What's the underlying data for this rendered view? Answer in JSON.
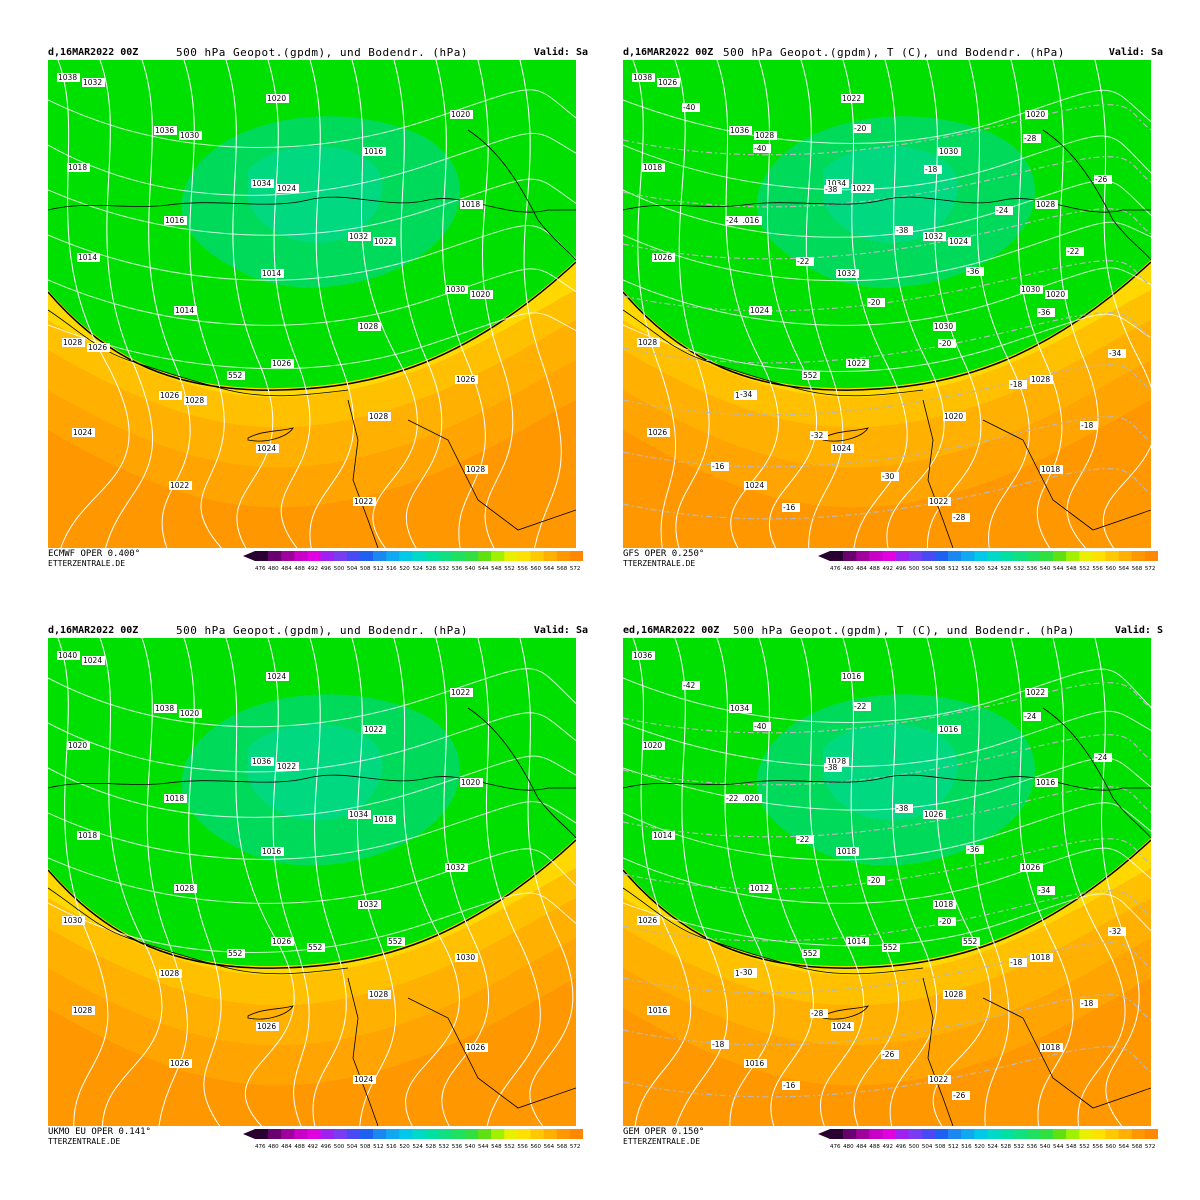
{
  "panels": [
    {
      "id": "ecmwf",
      "date": "d,16MAR2022 00Z",
      "title": "500 hPa Geopot.(gpdm), und Bodendr. (hPa)",
      "valid": "Valid: Sa",
      "model": "ECMWF OPER 0.400°",
      "site": "ETTERZENTRALE.DE",
      "pressure_labels": [
        "1038",
        "1036",
        "1034",
        "1032",
        "1030",
        "1028",
        "1026",
        "1024",
        "1022",
        "1020",
        "1018",
        "1016",
        "1014",
        "1028",
        "1026",
        "1024",
        "1022",
        "1020",
        "1016",
        "1018",
        "1014",
        "1014",
        "1026",
        "1028",
        "1028",
        "1032",
        "1030",
        "1024",
        "1022",
        "1020",
        "1026",
        "1028"
      ],
      "height_labels": [
        "552"
      ],
      "temp_labels": []
    },
    {
      "id": "gfs",
      "date": "d,16MAR2022 00Z",
      "title": "500 hPa Geopot.(gpdm), T (C), und Bodendr. (hPa)",
      "valid": "Valid: Sa",
      "model": "GFS OPER 0.250°",
      "site": "TTERZENTRALE.DE",
      "pressure_labels": [
        "1038",
        "1036",
        "1034",
        "1032",
        "1030",
        "1028",
        "1026",
        "1024",
        "1022",
        "1020",
        "1018",
        "1016",
        "1032",
        "1030",
        "1028",
        "1026",
        "1024",
        "1022",
        "1030",
        "1028",
        "1026",
        "1024",
        "1022",
        "1020",
        "1018",
        "1026",
        "1028",
        "1022",
        "1024",
        "1020"
      ],
      "height_labels": [
        "552"
      ],
      "temp_labels": [
        "-40",
        "-40",
        "-38",
        "-38",
        "-36",
        "-36",
        "-34",
        "-34",
        "-32",
        "-30",
        "-28",
        "-28",
        "-26",
        "-24",
        "-22",
        "-20",
        "-20",
        "-18",
        "-18",
        "-16",
        "-16",
        "-20",
        "-18",
        "-24",
        "-22"
      ]
    },
    {
      "id": "ukmo",
      "date": "d,16MAR2022 00Z",
      "title": "500 hPa Geopot.(gpdm), und Bodendr. (hPa)",
      "valid": "Valid: Sa",
      "model": "UKMO EU OPER 0.141°",
      "site": "TTERZENTRALE.DE",
      "pressure_labels": [
        "1040",
        "1038",
        "1036",
        "1034",
        "1032",
        "1030",
        "1028",
        "1026",
        "1024",
        "1022",
        "1020",
        "1018",
        "1016",
        "1032",
        "1030",
        "1028",
        "1026",
        "1024",
        "1022",
        "1020",
        "1018",
        "1028",
        "1026",
        "1028",
        "1026",
        "1024",
        "1020",
        "1022",
        "1018"
      ],
      "height_labels": [
        "552",
        "552",
        "552"
      ],
      "temp_labels": []
    },
    {
      "id": "gem",
      "date": "ed,16MAR2022 00Z",
      "title": "500 hPa Geopot.(gpdm), T (C), und Bodendr. (hPa)",
      "valid": "Valid: S",
      "model": "GEM OPER 0.150°",
      "site": "ETTERZENTRALE.DE",
      "pressure_labels": [
        "1036",
        "1034",
        "1028",
        "1026",
        "1026",
        "1026",
        "1024",
        "1024",
        "1022",
        "1022",
        "1020",
        "1020",
        "1018",
        "1018",
        "1018",
        "1016",
        "1016",
        "1016",
        "1016",
        "1016",
        "1014",
        "1012",
        "1014",
        "1028",
        "1018"
      ],
      "height_labels": [
        "552",
        "552",
        "552"
      ],
      "temp_labels": [
        "-42",
        "-40",
        "-38",
        "-38",
        "-36",
        "-34",
        "-32",
        "-30",
        "-28",
        "-26",
        "-26",
        "-24",
        "-24",
        "-22",
        "-22",
        "-20",
        "-20",
        "-18",
        "-18",
        "-18",
        "-16",
        "-22"
      ]
    }
  ],
  "colorbar": {
    "ticks": [
      "476",
      "480",
      "484",
      "488",
      "492",
      "496",
      "500",
      "504",
      "508",
      "512",
      "516",
      "520",
      "524",
      "528",
      "532",
      "536",
      "540",
      "544",
      "548",
      "552",
      "556",
      "560",
      "564",
      "568",
      "572"
    ],
    "colors": [
      "#2a0030",
      "#6a0070",
      "#a0009c",
      "#c800c8",
      "#e000e0",
      "#a020f0",
      "#7a3cf0",
      "#4a4af5",
      "#2060f0",
      "#1a88f0",
      "#10a8f0",
      "#00c8e8",
      "#00d8c8",
      "#00e0a0",
      "#10e080",
      "#20e060",
      "#30e040",
      "#60e010",
      "#a0f000",
      "#e8f000",
      "#ffe000",
      "#ffc800",
      "#ffb000",
      "#ff9800",
      "#ff8800"
    ]
  },
  "colors": {
    "deep_green": "#00e000",
    "core_green": "#00d890",
    "band_yellow": "#ffff00",
    "yellow_orange": "#ffd800",
    "orange": "#ffb000",
    "dark_orange": "#ff9800",
    "isobar": "#ffffff",
    "coast": "#000000"
  }
}
